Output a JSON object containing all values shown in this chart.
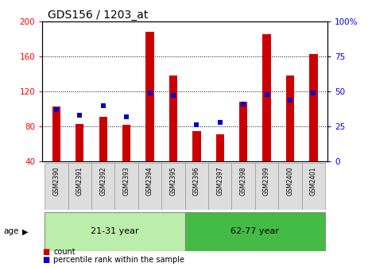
{
  "title": "GDS156 / 1203_at",
  "categories": [
    "GSM2390",
    "GSM2391",
    "GSM2392",
    "GSM2393",
    "GSM2394",
    "GSM2395",
    "GSM2396",
    "GSM2397",
    "GSM2398",
    "GSM2399",
    "GSM2400",
    "GSM2401"
  ],
  "count_values": [
    103,
    83,
    91,
    82,
    188,
    138,
    75,
    71,
    108,
    185,
    138,
    163
  ],
  "percentile_values": [
    37,
    33,
    40,
    32,
    49,
    47,
    26,
    28,
    41,
    48,
    44,
    49
  ],
  "bar_color": "#cc0000",
  "percentile_color": "#0000cc",
  "ylim_left": [
    40,
    200
  ],
  "ylim_right": [
    0,
    100
  ],
  "yticks_left": [
    40,
    80,
    120,
    160,
    200
  ],
  "yticks_right": [
    0,
    25,
    50,
    75,
    100
  ],
  "ytick_labels_right": [
    "0",
    "25",
    "50",
    "75",
    "100%"
  ],
  "group1_label": "21-31 year",
  "group2_label": "62-77 year",
  "group1_count": 6,
  "group2_count": 6,
  "age_label": "age",
  "legend_count_label": "count",
  "legend_percentile_label": "percentile rank within the sample",
  "bg_color": "#ffffff",
  "group1_bg": "#bbeeaa",
  "group2_bg": "#44bb44",
  "xtick_bg": "#dddddd",
  "bar_width": 0.35
}
